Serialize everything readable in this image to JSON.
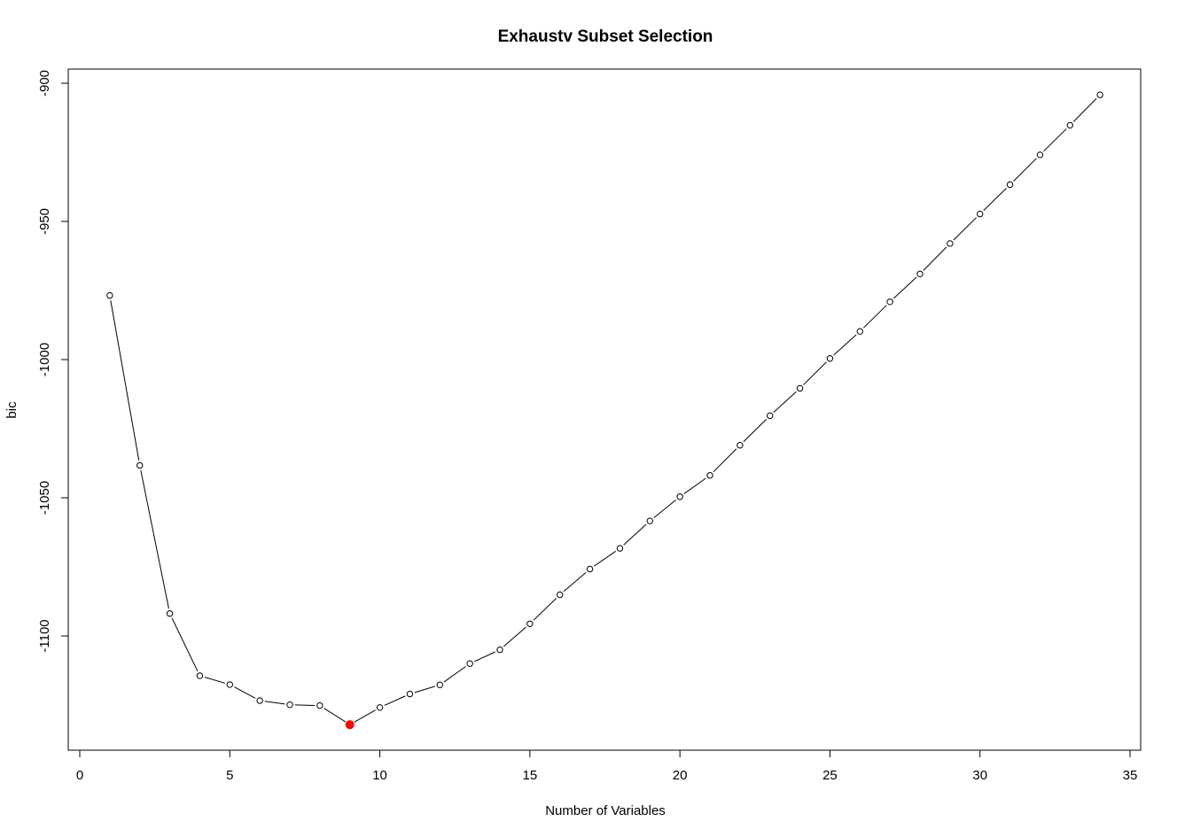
{
  "chart_data": {
    "type": "line",
    "title": "Exhaustv Subset Selection",
    "xlabel": "Number of Variables",
    "ylabel": "bic",
    "xlim": [
      0,
      35
    ],
    "ylim": [
      -1133,
      -895
    ],
    "x_ticks": [
      0,
      5,
      10,
      15,
      20,
      25,
      30,
      35
    ],
    "y_ticks": [
      -900,
      -950,
      -1000,
      -1050,
      -1100
    ],
    "x_tick_labels": [
      "0",
      "5",
      "10",
      "15",
      "20",
      "25",
      "30",
      "35"
    ],
    "y_tick_labels": [
      "-900",
      "-950",
      "-1000",
      "-1050",
      "-1100"
    ],
    "series": [
      {
        "x": [
          1,
          2,
          3,
          4,
          5,
          6,
          7,
          8,
          9,
          10,
          11,
          12,
          13,
          14,
          15,
          16,
          17,
          18,
          19,
          20,
          21,
          22,
          23,
          24,
          25,
          26,
          27,
          28,
          29,
          30,
          31,
          32,
          33,
          34
        ],
        "values": [
          -976.8,
          -1038.3,
          -1091.9,
          -1114.4,
          -1117.6,
          -1123.4,
          -1124.9,
          -1125.2,
          -1132.1,
          -1125.9,
          -1121.0,
          -1117.7,
          -1110.0,
          -1105.0,
          -1095.6,
          -1085.1,
          -1075.8,
          -1068.3,
          -1058.4,
          -1049.6,
          -1041.9,
          -1031.0,
          -1020.3,
          -1010.4,
          -999.6,
          -989.8,
          -979.1,
          -969.0,
          -958.0,
          -947.3,
          -936.7,
          -925.9,
          -915.2,
          -904.2
        ]
      }
    ],
    "highlight": {
      "x": 9,
      "y": -1132.1,
      "color": "#ff0000"
    },
    "line_color": "#000000",
    "marker_color": "#000000",
    "grid": false,
    "legend": "none"
  }
}
